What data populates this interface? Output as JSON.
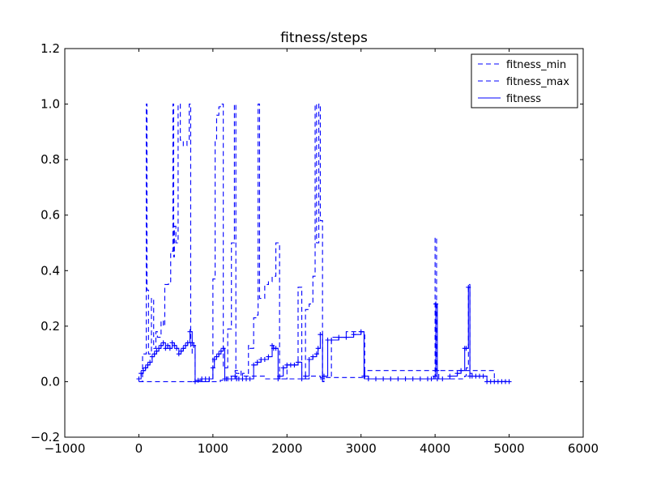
{
  "chart_data": {
    "type": "line",
    "title": "fitness/steps",
    "xlabel": "",
    "ylabel": "",
    "xlim": [
      -1000,
      6000
    ],
    "ylim": [
      -0.2,
      1.2
    ],
    "xticks": [
      -1000,
      0,
      1000,
      2000,
      3000,
      4000,
      5000,
      6000
    ],
    "xtick_labels": [
      "−1000",
      "0",
      "1000",
      "2000",
      "3000",
      "4000",
      "5000",
      "6000"
    ],
    "yticks": [
      -0.2,
      0.0,
      0.2,
      0.4,
      0.6,
      0.8,
      1.0,
      1.2
    ],
    "ytick_labels": [
      "−0.2",
      "0.0",
      "0.2",
      "0.4",
      "0.6",
      "0.8",
      "1.0",
      "1.2"
    ],
    "grid": false,
    "legend_position": "top-right",
    "color": "#0000ff",
    "series": [
      {
        "name": "fitness_min",
        "style": "dashed",
        "x": [
          0,
          100,
          150,
          320,
          480,
          520,
          600,
          660,
          700,
          760,
          1000,
          1100,
          1160,
          1200,
          1300,
          1380,
          1600,
          1700,
          1850,
          1900,
          2000,
          2100,
          2200,
          2300,
          2400,
          2450,
          2500,
          2600,
          2800,
          2900,
          3000,
          3050,
          3200,
          3500,
          3700,
          3800,
          4000,
          4050,
          4200,
          4350,
          4400,
          4500,
          4600,
          4700,
          4800,
          4900,
          5000
        ],
        "y": [
          0.0,
          0.0,
          0.0,
          0.0,
          0.0,
          0.0,
          0.0,
          0.0,
          0.0,
          0.0,
          0.0,
          0.005,
          0.01,
          0.02,
          0.04,
          0.02,
          0.02,
          0.01,
          0.01,
          0.01,
          0.01,
          0.01,
          0.01,
          0.02,
          0.02,
          0.015,
          0.015,
          0.015,
          0.015,
          0.015,
          0.015,
          0.04,
          0.04,
          0.04,
          0.04,
          0.04,
          0.04,
          0.04,
          0.04,
          0.04,
          0.04,
          0.04,
          0.04,
          0.04,
          0.0,
          0.0,
          0.0
        ]
      },
      {
        "name": "fitness_max",
        "style": "dashed",
        "x": [
          0,
          50,
          100,
          110,
          130,
          170,
          200,
          230,
          250,
          300,
          330,
          350,
          400,
          430,
          460,
          470,
          480,
          500,
          530,
          560,
          600,
          650,
          680,
          700,
          720,
          760,
          950,
          1000,
          1030,
          1050,
          1080,
          1100,
          1140,
          1160,
          1200,
          1250,
          1290,
          1310,
          1350,
          1400,
          1480,
          1500,
          1550,
          1580,
          1610,
          1630,
          1700,
          1750,
          1800,
          1850,
          1900,
          2000,
          2100,
          2150,
          2200,
          2250,
          2300,
          2350,
          2380,
          2400,
          2430,
          2450,
          2480,
          2500,
          2550,
          2600,
          2700,
          2800,
          2900,
          3000,
          3050,
          3500,
          3900,
          3980,
          4000,
          4020,
          4050,
          4300,
          4400,
          4420,
          4450,
          4470,
          4500,
          4550,
          4600,
          4650,
          4700,
          4800,
          4900,
          5000
        ],
        "y": [
          0.0,
          0.1,
          1.0,
          0.33,
          0.1,
          0.3,
          0.12,
          0.18,
          0.16,
          0.22,
          0.2,
          0.35,
          0.36,
          0.47,
          1.0,
          0.45,
          0.56,
          0.5,
          1.0,
          0.87,
          0.85,
          0.87,
          1.0,
          0.12,
          0.1,
          0.0,
          0.01,
          0.37,
          0.87,
          0.96,
          0.99,
          1.0,
          0.05,
          0.05,
          0.19,
          0.5,
          1.0,
          0.03,
          0.01,
          0.03,
          0.13,
          0.12,
          0.23,
          0.24,
          1.0,
          0.3,
          0.35,
          0.36,
          0.38,
          0.5,
          0.01,
          0.06,
          0.06,
          0.34,
          0.02,
          0.26,
          0.28,
          0.38,
          1.0,
          0.5,
          1.0,
          0.58,
          0.0,
          0.02,
          0.02,
          0.16,
          0.16,
          0.18,
          0.18,
          0.18,
          0.01,
          0.01,
          0.01,
          0.02,
          0.52,
          0.04,
          0.01,
          0.01,
          0.02,
          0.05,
          0.35,
          0.03,
          0.02,
          0.02,
          0.02,
          0.02,
          0.0,
          0.0,
          0.0,
          0.0
        ]
      },
      {
        "name": "fitness",
        "style": "solid",
        "marker": "+",
        "x": [
          0,
          30,
          60,
          90,
          120,
          150,
          180,
          210,
          240,
          270,
          300,
          330,
          360,
          390,
          420,
          450,
          480,
          510,
          540,
          570,
          600,
          630,
          660,
          690,
          720,
          740,
          760,
          800,
          850,
          900,
          950,
          1000,
          1020,
          1050,
          1080,
          1110,
          1140,
          1160,
          1180,
          1200,
          1250,
          1300,
          1320,
          1350,
          1400,
          1450,
          1500,
          1550,
          1600,
          1650,
          1700,
          1750,
          1800,
          1820,
          1850,
          1880,
          1900,
          1950,
          2000,
          2050,
          2100,
          2150,
          2200,
          2250,
          2300,
          2350,
          2400,
          2420,
          2450,
          2480,
          2500,
          2550,
          2600,
          2700,
          2800,
          2900,
          3000,
          3040,
          3100,
          3200,
          3300,
          3400,
          3500,
          3600,
          3700,
          3800,
          3900,
          3950,
          4000,
          4010,
          4030,
          4100,
          4200,
          4300,
          4350,
          4400,
          4420,
          4450,
          4470,
          4500,
          4550,
          4600,
          4650,
          4700,
          4750,
          4800,
          4850,
          4900,
          4950,
          5000
        ],
        "y": [
          0.01,
          0.03,
          0.04,
          0.05,
          0.06,
          0.07,
          0.09,
          0.1,
          0.11,
          0.12,
          0.13,
          0.14,
          0.12,
          0.13,
          0.12,
          0.14,
          0.13,
          0.12,
          0.1,
          0.11,
          0.12,
          0.13,
          0.14,
          0.18,
          0.14,
          0.13,
          0.0,
          0.005,
          0.01,
          0.01,
          0.01,
          0.05,
          0.08,
          0.09,
          0.1,
          0.11,
          0.12,
          0.01,
          0.01,
          0.01,
          0.01,
          0.02,
          0.01,
          0.01,
          0.01,
          0.01,
          0.01,
          0.06,
          0.07,
          0.08,
          0.08,
          0.09,
          0.13,
          0.12,
          0.12,
          0.01,
          0.02,
          0.05,
          0.06,
          0.06,
          0.06,
          0.07,
          0.01,
          0.02,
          0.08,
          0.09,
          0.1,
          0.12,
          0.17,
          0.01,
          0.02,
          0.15,
          0.15,
          0.16,
          0.16,
          0.17,
          0.18,
          0.02,
          0.01,
          0.01,
          0.01,
          0.01,
          0.01,
          0.01,
          0.01,
          0.01,
          0.01,
          0.01,
          0.02,
          0.28,
          0.01,
          0.01,
          0.02,
          0.03,
          0.04,
          0.12,
          0.12,
          0.34,
          0.02,
          0.02,
          0.02,
          0.02,
          0.02,
          0.0,
          0.0,
          0.0,
          0.0,
          0.0,
          0.0,
          0.0
        ]
      }
    ]
  }
}
